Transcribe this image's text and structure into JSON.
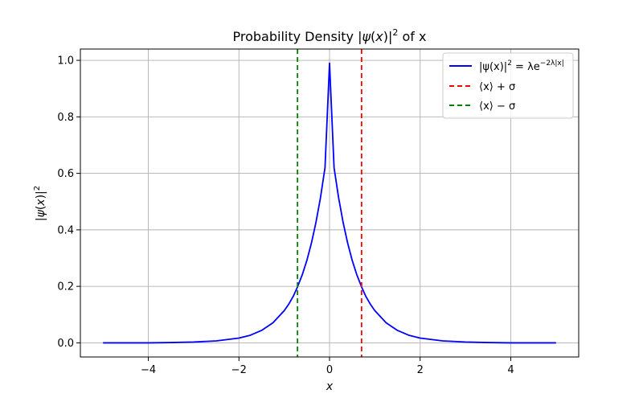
{
  "chart_data": {
    "type": "line",
    "title_prefix": "Probability Density |",
    "title_psi": "ψ",
    "title_mid": "(",
    "title_x": "x",
    "title_close": ")|",
    "title_sup": "2",
    "title_suffix": " of x",
    "xlabel": "x",
    "ylabel_prefix": "|",
    "ylabel_psi": "ψ",
    "ylabel_mid": "(",
    "ylabel_x": "x",
    "ylabel_close": ")|",
    "ylabel_sup": "2",
    "xlim": [
      -5.5,
      5.5
    ],
    "ylim": [
      -0.05,
      1.04
    ],
    "xticks": [
      -4,
      -2,
      0,
      2,
      4
    ],
    "xtick_labels": [
      "−4",
      "−2",
      "0",
      "2",
      "4"
    ],
    "yticks": [
      0.0,
      0.2,
      0.4,
      0.6,
      0.8,
      1.0
    ],
    "ytick_labels": [
      "0.0",
      "0.2",
      "0.4",
      "0.6",
      "0.8",
      "1.0"
    ],
    "grid": true,
    "legend_position": "top-right",
    "series": [
      {
        "name": "|ψ(x)|² = λe^(−2λ|x|)",
        "legend_main": "|ψ(x)|",
        "legend_sup": "2",
        "legend_eq": " = λe",
        "legend_exp": "−2λ|x|",
        "color": "#0000ff",
        "style": "solid",
        "kind": "curve",
        "x": [
          -5,
          -4.5,
          -4,
          -3.5,
          -3,
          -2.5,
          -2,
          -1.75,
          -1.5,
          -1.25,
          -1,
          -0.9,
          -0.8,
          -0.707,
          -0.6,
          -0.5,
          -0.4,
          -0.3,
          -0.2,
          -0.1,
          0,
          0.1,
          0.2,
          0.3,
          0.4,
          0.5,
          0.6,
          0.707,
          0.8,
          0.9,
          1,
          1.25,
          1.5,
          1.75,
          2,
          2.5,
          3,
          3.5,
          4,
          4.5,
          5
        ],
        "y": [
          0.0,
          0.0,
          0.0,
          0.001,
          0.003,
          0.007,
          0.017,
          0.027,
          0.044,
          0.071,
          0.114,
          0.137,
          0.165,
          0.198,
          0.242,
          0.292,
          0.353,
          0.426,
          0.514,
          0.62,
          0.99,
          0.62,
          0.514,
          0.426,
          0.353,
          0.292,
          0.242,
          0.198,
          0.165,
          0.137,
          0.114,
          0.071,
          0.044,
          0.027,
          0.017,
          0.007,
          0.003,
          0.001,
          0.0,
          0.0,
          0.0
        ]
      },
      {
        "name": "⟨x⟩ + σ",
        "legend_text": "⟨x⟩ + σ",
        "color": "#ff0000",
        "style": "dashed",
        "kind": "vline",
        "x_value": 0.707
      },
      {
        "name": "⟨x⟩ − σ",
        "legend_text": "⟨x⟩ − σ",
        "color": "#008000",
        "style": "dashed",
        "kind": "vline",
        "x_value": -0.707
      }
    ]
  }
}
